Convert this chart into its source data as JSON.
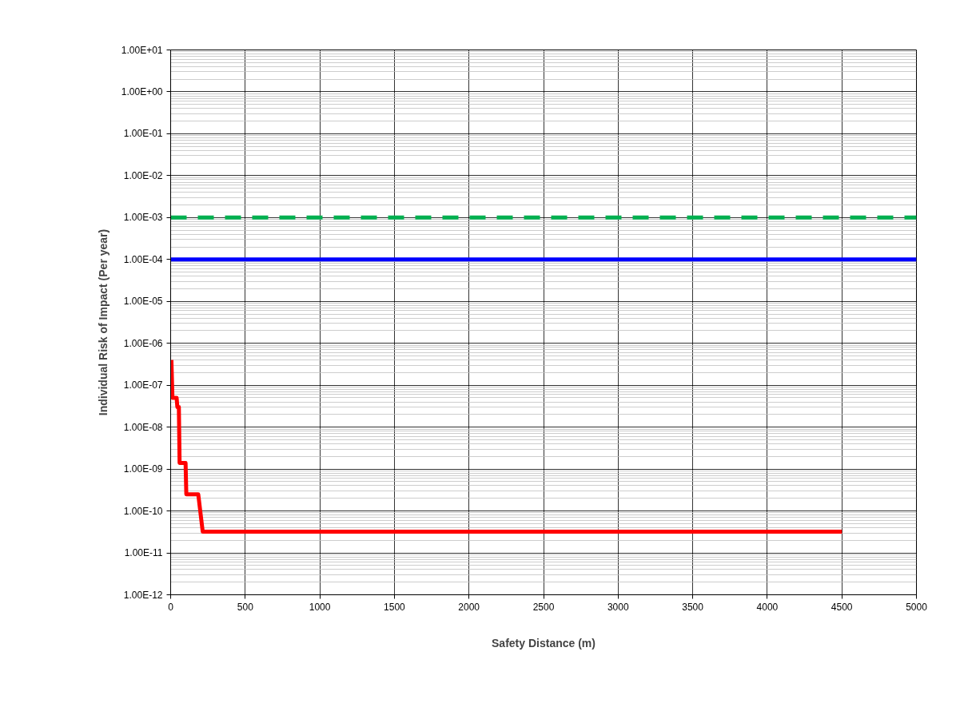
{
  "chart_data": {
    "type": "line",
    "xlabel": "Safety Distance (m)",
    "ylabel": "Individual Risk of Impact (Per year)",
    "log": "y",
    "grid": true,
    "xlim": [
      0,
      5000
    ],
    "xticks": [
      0,
      500,
      1000,
      1500,
      2000,
      2500,
      3000,
      3500,
      4000,
      4500,
      5000
    ],
    "ylim": [
      1e-12,
      10
    ],
    "yticks": [
      {
        "value": 1e-12,
        "label": "1.00E-12"
      },
      {
        "value": 1e-11,
        "label": "1.00E-11"
      },
      {
        "value": 1e-10,
        "label": "1.00E-10"
      },
      {
        "value": 1e-09,
        "label": "1.00E-09"
      },
      {
        "value": 1e-08,
        "label": "1.00E-08"
      },
      {
        "value": 1e-07,
        "label": "1.00E-07"
      },
      {
        "value": 1e-06,
        "label": "1.00E-06"
      },
      {
        "value": 1e-05,
        "label": "1.00E-05"
      },
      {
        "value": 0.0001,
        "label": "1.00E-04"
      },
      {
        "value": 0.001,
        "label": "1.00E-03"
      },
      {
        "value": 0.01,
        "label": "1.00E-02"
      },
      {
        "value": 0.1,
        "label": "1.00E-01"
      },
      {
        "value": 1,
        "label": "1.00E+00"
      },
      {
        "value": 10,
        "label": "1.00E+01"
      }
    ],
    "series": [
      {
        "color": "#00b050",
        "line_style": "dashed",
        "x": [
          0,
          5000
        ],
        "values": [
          0.001,
          0.001
        ]
      },
      {
        "color": "#0000ff",
        "line_style": "solid",
        "x": [
          0,
          5000
        ],
        "values": [
          0.0001,
          0.0001
        ]
      },
      {
        "color": "#ff0000",
        "line_style": "solid",
        "x": [
          5,
          12,
          40,
          45,
          55,
          60,
          100,
          105,
          185,
          215,
          4500
        ],
        "values": [
          4e-07,
          5e-08,
          5e-08,
          3e-08,
          3e-08,
          1.4e-09,
          1.4e-09,
          2.5e-10,
          2.5e-10,
          3.2e-11,
          3.2e-11
        ]
      }
    ]
  }
}
